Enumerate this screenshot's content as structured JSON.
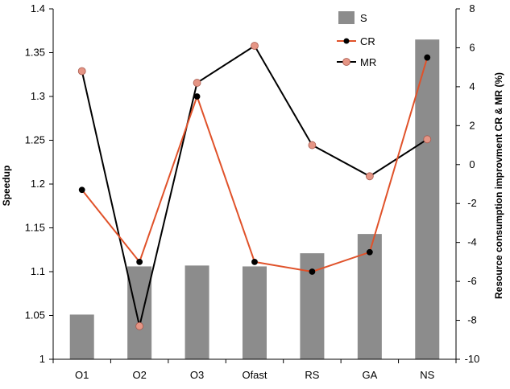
{
  "chart_data": {
    "type": "bar+line",
    "categories": [
      "O1",
      "O2",
      "O3",
      "Ofast",
      "RS",
      "GA",
      "NS"
    ],
    "ylabel_left": "Speedup",
    "ylabel_right": "Resource consumption improvment CR & MR (%)",
    "ylim_left": [
      1,
      1.4
    ],
    "yticks_left": [
      "1",
      "1.05",
      "1.1",
      "1.15",
      "1.2",
      "1.25",
      "1.3",
      "1.35",
      "1.4"
    ],
    "ylim_right": [
      -10,
      8
    ],
    "yticks_right": [
      "-10",
      "-8",
      "-6",
      "-4",
      "-2",
      "0",
      "2",
      "4",
      "6",
      "8"
    ],
    "grid": false,
    "legend_position": "top-right",
    "series": [
      {
        "name": "S",
        "type": "bar",
        "axis": "left",
        "color": "#8c8c8c",
        "values": [
          1.051,
          1.106,
          1.107,
          1.106,
          1.121,
          1.143,
          1.365
        ]
      },
      {
        "name": "CR",
        "type": "line",
        "axis": "right",
        "color": "#e0522a",
        "marker": "#000000",
        "values": [
          -1.3,
          -5.0,
          3.5,
          -5.0,
          -5.5,
          -4.5,
          5.5
        ]
      },
      {
        "name": "MR",
        "type": "line",
        "axis": "right",
        "color": "#000000",
        "marker": "#e59585",
        "values": [
          4.8,
          -8.3,
          4.2,
          6.1,
          1.0,
          -0.6,
          1.3
        ]
      }
    ]
  }
}
